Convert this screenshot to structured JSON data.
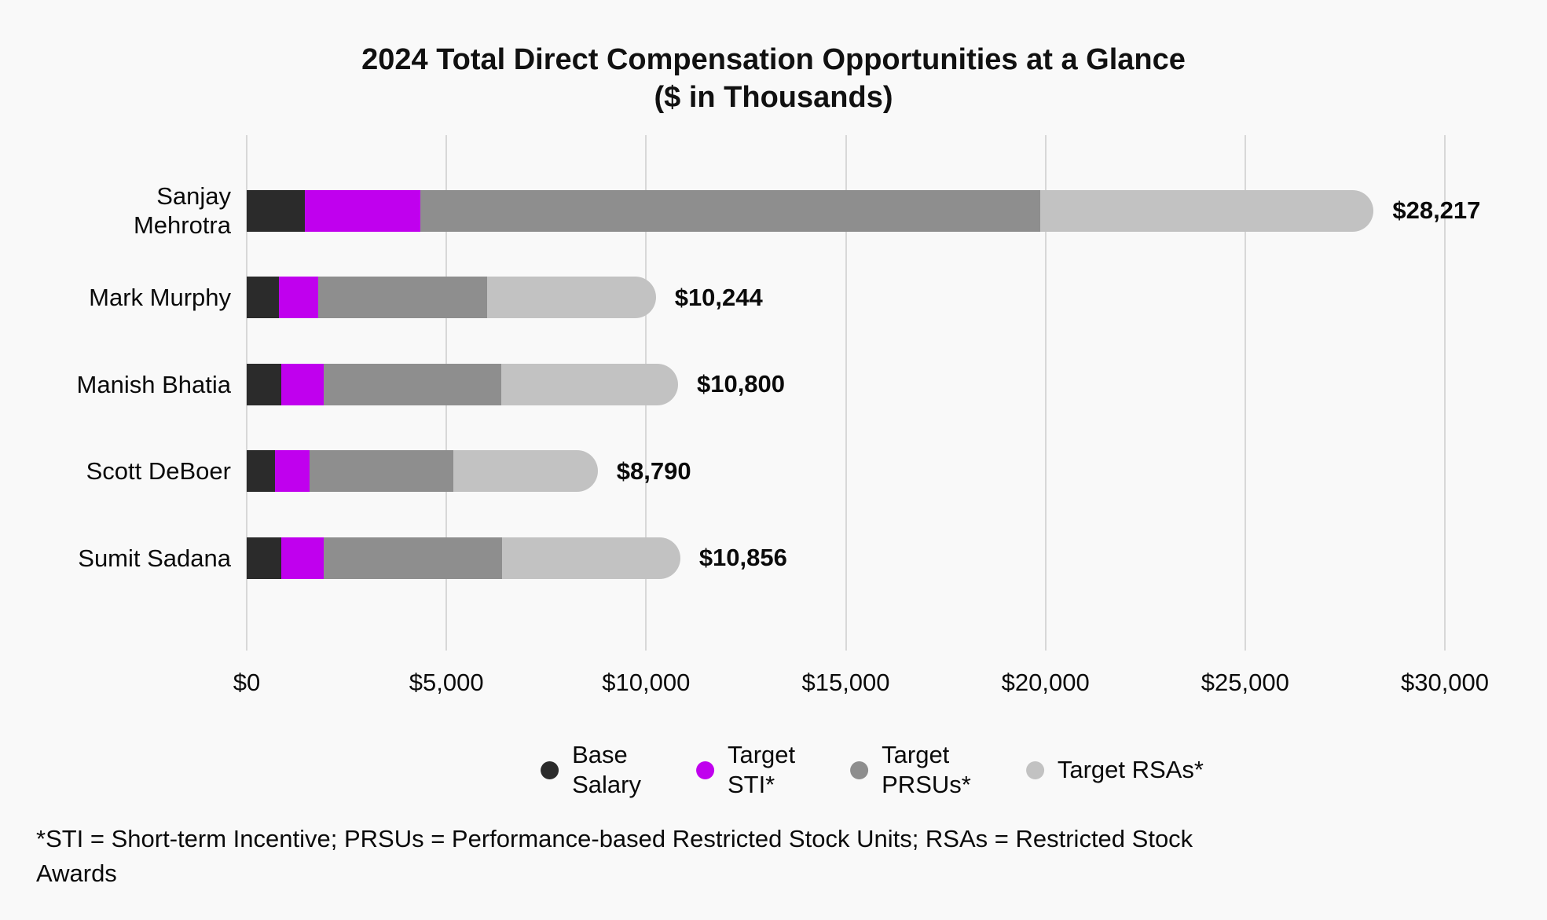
{
  "title": "2024 Total Direct Compensation Opportunities at a Glance",
  "subtitle": "($ in Thousands)",
  "footnote": "*STI = Short-term Incentive; PRSUs = Performance-based Restricted Stock Units; RSAs = Restricted Stock Awards",
  "chart_data": {
    "type": "bar",
    "orientation": "horizontal",
    "stacked": true,
    "unit": "$ thousands",
    "grid": "vertical",
    "legend_position": "bottom",
    "xlim": [
      0,
      30000
    ],
    "categories": [
      "Sanjay Mehrotra",
      "Mark Murphy",
      "Manish Bhatia",
      "Scott DeBoer",
      "Sumit Sadana"
    ],
    "category_display": [
      "Sanjay\nMehrotra",
      "Mark Murphy",
      "Manish Bhatia",
      "Scott DeBoer",
      "Sumit Sadana"
    ],
    "series": [
      {
        "name": "Base Salary",
        "color": "#2b2b2b",
        "values": [
          1450,
          800,
          860,
          700,
          860
        ]
      },
      {
        "name": "Target STI*",
        "color": "#c000ee",
        "values": [
          2900,
          1000,
          1075,
          875,
          1075
        ]
      },
      {
        "name": "Target PRSUs*",
        "color": "#8e8e8e",
        "values": [
          15514,
          4222,
          4433,
          3608,
          4461
        ]
      },
      {
        "name": "Target RSAs*",
        "color": "#c2c2c2",
        "values": [
          8353,
          4222,
          4432,
          3607,
          4460
        ]
      }
    ],
    "totals": [
      28217,
      10244,
      10800,
      8790,
      10856
    ],
    "total_labels": [
      "$28,217",
      "$10,244",
      "$10,800",
      "$8,790",
      "$10,856"
    ],
    "x_ticks": [
      {
        "value": 0,
        "label": "$0"
      },
      {
        "value": 5000,
        "label": "$5,000"
      },
      {
        "value": 10000,
        "label": "$10,000"
      },
      {
        "value": 15000,
        "label": "$15,000"
      },
      {
        "value": 20000,
        "label": "$20,000"
      },
      {
        "value": 25000,
        "label": "$25,000"
      },
      {
        "value": 30000,
        "label": "$30,000"
      }
    ],
    "legend_display": [
      "Base\nSalary",
      "Target\nSTI*",
      "Target\nPRSUs*",
      "Target RSAs*"
    ],
    "colors": {
      "background": "#f9f9f9",
      "gridline": "#d8d8d8",
      "text": "#0a0a0a"
    }
  }
}
